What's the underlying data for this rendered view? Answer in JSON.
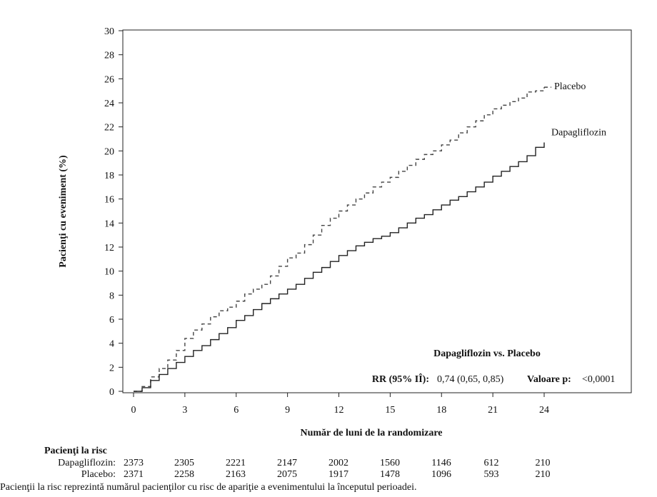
{
  "chart_data": {
    "type": "line",
    "ylabel": "Pacienţi cu eveniment (%)",
    "xlabel": "Număr de luni de la randomizare",
    "xlim": [
      0,
      24
    ],
    "ylim": [
      0,
      30
    ],
    "x_ticks": [
      0,
      3,
      6,
      9,
      12,
      15,
      18,
      21,
      24
    ],
    "y_ticks": [
      0,
      2,
      4,
      6,
      8,
      10,
      12,
      14,
      16,
      18,
      20,
      22,
      24,
      26,
      28,
      30
    ],
    "grid": false,
    "series": [
      {
        "name": "Placebo",
        "style": "dashed",
        "x": [
          0,
          0.5,
          1,
          1.5,
          2,
          2.5,
          3,
          3.5,
          4,
          4.5,
          5,
          5.5,
          6,
          6.5,
          7,
          7.5,
          8,
          8.5,
          9,
          9.5,
          10,
          10.5,
          11,
          11.5,
          12,
          12.5,
          13,
          13.5,
          14,
          14.5,
          15,
          15.5,
          16,
          16.5,
          17,
          17.5,
          18,
          18.5,
          19,
          19.5,
          20,
          20.5,
          21,
          21.5,
          22,
          22.5,
          23,
          23.5,
          24
        ],
        "values": [
          0,
          0.4,
          1.2,
          1.9,
          2.6,
          3.4,
          4.4,
          5.1,
          5.6,
          6.2,
          6.7,
          7.0,
          7.5,
          8.1,
          8.5,
          8.9,
          9.6,
          10.4,
          11.1,
          11.5,
          12.2,
          13.0,
          13.8,
          14.4,
          15.0,
          15.5,
          16.0,
          16.5,
          17.0,
          17.4,
          17.8,
          18.3,
          18.8,
          19.3,
          19.7,
          20.0,
          20.5,
          20.9,
          21.5,
          22.0,
          22.5,
          23.0,
          23.5,
          23.8,
          24.1,
          24.4,
          24.9,
          25.0,
          25.3
        ]
      },
      {
        "name": "Dapagliflozin",
        "style": "solid",
        "x": [
          0,
          0.5,
          1,
          1.5,
          2,
          2.5,
          3,
          3.5,
          4,
          4.5,
          5,
          5.5,
          6,
          6.5,
          7,
          7.5,
          8,
          8.5,
          9,
          9.5,
          10,
          10.5,
          11,
          11.5,
          12,
          12.5,
          13,
          13.5,
          14,
          14.5,
          15,
          15.5,
          16,
          16.5,
          17,
          17.5,
          18,
          18.5,
          19,
          19.5,
          20,
          20.5,
          21,
          21.5,
          22,
          22.5,
          23,
          23.5,
          24
        ],
        "values": [
          0,
          0.3,
          0.9,
          1.4,
          1.9,
          2.4,
          2.9,
          3.4,
          3.8,
          4.3,
          4.8,
          5.3,
          5.9,
          6.3,
          6.8,
          7.3,
          7.7,
          8.1,
          8.5,
          8.9,
          9.4,
          9.9,
          10.3,
          10.8,
          11.3,
          11.7,
          12.1,
          12.4,
          12.7,
          12.9,
          13.2,
          13.6,
          14.0,
          14.4,
          14.7,
          15.1,
          15.5,
          15.9,
          16.2,
          16.6,
          17.0,
          17.4,
          17.9,
          18.3,
          18.7,
          19.1,
          19.6,
          20.3,
          20.7
        ]
      }
    ],
    "annotation": {
      "heading": "Dapagliflozin vs. Placebo",
      "rr_label": "RR (95% IÎ):",
      "rr_value": "0,74 (0,65, 0,85)",
      "p_label": "Valoare p:",
      "p_value": "<0,0001"
    }
  },
  "risk_table": {
    "title": "Pacienţi la risc",
    "rows": [
      {
        "label": "Dapagliflozin:",
        "values": [
          2373,
          2305,
          2221,
          2147,
          2002,
          1560,
          1146,
          612,
          210
        ]
      },
      {
        "label": "Placebo:",
        "values": [
          2371,
          2258,
          2163,
          2075,
          1917,
          1478,
          1096,
          593,
          210
        ]
      }
    ]
  },
  "caption": "Pacienţii la risc reprezintă numărul pacienţilor cu risc de apariţie a evenimentului la începutul perioadei."
}
